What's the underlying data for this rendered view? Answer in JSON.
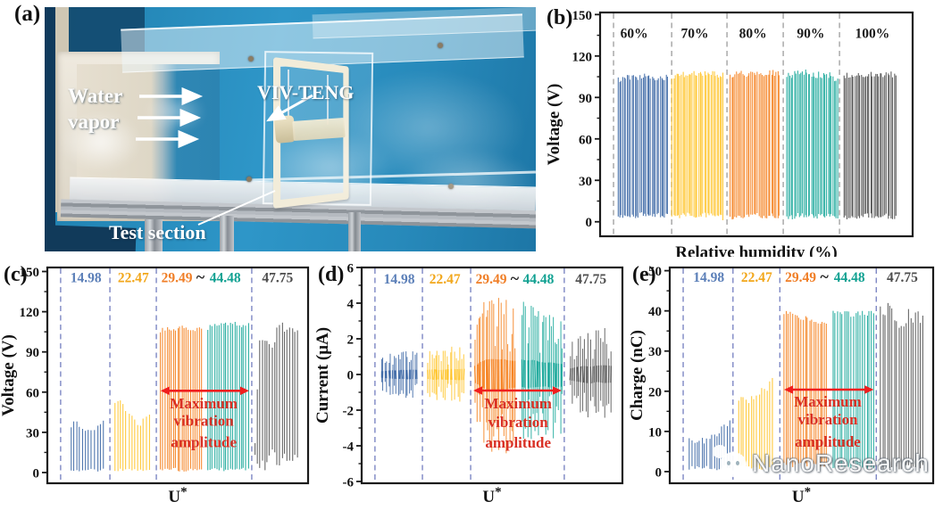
{
  "panel_a": {
    "label": "(a)"
  },
  "photo": {
    "labels": {
      "water_vapor": "Water vapor",
      "viv_teng": "VIV-TENG",
      "test_section": "Test section"
    }
  },
  "watermark": {
    "text": "NanoResearch"
  },
  "chart_data": [
    {
      "id": "b",
      "panel_label": "(b)",
      "type": "line",
      "subtype": "oscillation-bursts",
      "title": "",
      "xlabel": "Relative humidity (%)",
      "ylabel": "Voltage (V)",
      "ylim": [
        -10.5,
        151.5
      ],
      "yticks": [
        0,
        30,
        60,
        90,
        120,
        150
      ],
      "grid": false,
      "separators": {
        "color": "#A3A3A3",
        "positions": [
          0.043,
          0.229,
          0.406,
          0.586,
          0.766
        ]
      },
      "group_label_y": 133,
      "extra_labels": [],
      "groups": [
        {
          "label": "60%",
          "label_color": "#1a1a1a",
          "label_x": 0.109,
          "color": "#3E69A6",
          "x0": 0.057,
          "x1": 0.217,
          "style": "solid",
          "spacing": 1.7,
          "tjit": 2.2,
          "bjit": 4,
          "top": [
            103,
            105,
            104,
            106,
            104,
            105,
            104
          ],
          "bottom": [
            1,
            3,
            2,
            4,
            2,
            3,
            2
          ]
        },
        {
          "label": "70%",
          "label_color": "#1a1a1a",
          "label_x": 0.303,
          "color": "#FFC42A",
          "x0": 0.231,
          "x1": 0.394,
          "style": "solid",
          "spacing": 1.7,
          "tjit": 2.2,
          "bjit": 4,
          "top": [
            105,
            107,
            106,
            108,
            107,
            107,
            106
          ],
          "bottom": [
            1,
            2,
            3,
            2,
            3,
            2,
            1
          ]
        },
        {
          "label": "80%",
          "label_color": "#1a1a1a",
          "label_x": 0.489,
          "color": "#F58220",
          "x0": 0.417,
          "x1": 0.574,
          "style": "solid",
          "spacing": 1.7,
          "tjit": 2.2,
          "bjit": 4,
          "top": [
            106,
            108,
            107,
            108,
            107,
            108,
            107
          ],
          "bottom": [
            1,
            2,
            2,
            3,
            2,
            2,
            1
          ]
        },
        {
          "label": "90%",
          "label_color": "#1a1a1a",
          "label_x": 0.674,
          "color": "#1CA99B",
          "x0": 0.597,
          "x1": 0.76,
          "style": "solid",
          "spacing": 1.7,
          "tjit": 2.8,
          "bjit": 4,
          "top": [
            105,
            107,
            108,
            106,
            107,
            106,
            103
          ],
          "bottom": [
            1,
            2,
            3,
            2,
            2,
            3,
            2
          ]
        },
        {
          "label": "100%",
          "label_color": "#1a1a1a",
          "label_x": 0.871,
          "color": "#4F4F4F",
          "x0": 0.78,
          "x1": 0.946,
          "style": "solid",
          "spacing": 1.7,
          "tjit": 2.2,
          "bjit": 4,
          "top": [
            105,
            107,
            106,
            107,
            105,
            107,
            106
          ],
          "bottom": [
            1,
            2,
            2,
            3,
            2,
            2,
            1
          ]
        }
      ],
      "annotation": null
    },
    {
      "id": "c",
      "panel_label": "(c)",
      "type": "line",
      "subtype": "oscillation-bursts",
      "title": "",
      "xlabel": "U*",
      "ylabel": "Voltage (V)",
      "ylim": [
        -8,
        153
      ],
      "yticks": [
        0,
        30,
        60,
        90,
        120,
        150
      ],
      "grid": false,
      "separators": {
        "color": "#7D87C4",
        "positions": [
          0.051,
          0.24,
          0.418,
          0.784
        ]
      },
      "group_label_y": 142,
      "extra_labels": [
        {
          "text": "~",
          "x": 0.587,
          "color": "#1a1a1a"
        }
      ],
      "groups": [
        {
          "label": "14.98",
          "label_color": "#5B7FB8",
          "label_x": 0.148,
          "color": "#3E69A6",
          "x0": 0.09,
          "x1": 0.215,
          "style": "solid",
          "spacing": 3.1,
          "tjit": 1.6,
          "bjit": 2,
          "top": [
            34,
            40,
            36,
            31,
            30,
            31,
            33,
            37,
            38
          ],
          "bottom": [
            0.5,
            1,
            0.5,
            1,
            0.5,
            1
          ]
        },
        {
          "label": "22.47",
          "label_color": "#F2A71B",
          "label_x": 0.33,
          "color": "#FFC42A",
          "x0": 0.258,
          "x1": 0.39,
          "style": "solid",
          "spacing": 3.0,
          "tjit": 1.6,
          "bjit": 2,
          "top": [
            51,
            55,
            50,
            45,
            41,
            37,
            36,
            40,
            43
          ],
          "bottom": [
            0.5,
            1,
            1,
            0.5,
            1,
            0.5
          ]
        },
        {
          "label": "29.49",
          "label_color": "#F07E26",
          "label_x": 0.497,
          "color": "#F58220",
          "x0": 0.435,
          "x1": 0.59,
          "style": "solid",
          "spacing": 2.3,
          "tjit": 1.6,
          "bjit": 3,
          "top": [
            106,
            108,
            107,
            108,
            108,
            107,
            108
          ],
          "bottom": [
            0.5,
            1,
            0.5,
            1,
            0.5
          ]
        },
        {
          "label": "44.48",
          "label_color": "#11A192",
          "label_x": 0.682,
          "color": "#1CA99B",
          "x0": 0.616,
          "x1": 0.77,
          "style": "solid",
          "spacing": 2.4,
          "tjit": 1.6,
          "bjit": 3,
          "top": [
            108,
            110,
            111,
            110,
            111,
            110,
            110
          ],
          "bottom": [
            0.5,
            1,
            0.5,
            1,
            0.5
          ]
        },
        {
          "label": "47.75",
          "label_color": "#4D4D4D",
          "label_x": 0.883,
          "color": "#585858",
          "x0": 0.795,
          "x1": 0.958,
          "style": "solid",
          "spacing": 2.6,
          "tjit": 5,
          "bjit": 14,
          "top": [
            26,
            96,
            99,
            92,
            100,
            106,
            108,
            104,
            106,
            102
          ],
          "bottom": [
            0,
            2,
            0,
            8,
            2,
            0,
            6,
            0
          ]
        }
      ],
      "annotation": {
        "lines": [
          "Maximum",
          "vibration",
          "amplitude"
        ],
        "color": "#D93025",
        "arrow_color": "#F01E1E",
        "arrow": {
          "x0": 0.424,
          "x1": 0.784,
          "y": 61
        },
        "text_x": 0.6,
        "text_y": [
          48,
          35,
          19
        ]
      }
    },
    {
      "id": "d",
      "panel_label": "(d)",
      "type": "line",
      "subtype": "oscillation-bursts",
      "title": "",
      "xlabel": "U*",
      "ylabel": "Current (μA)",
      "ylim": [
        -6.1,
        6.0
      ],
      "yticks": [
        -6,
        -4,
        -2,
        0,
        2,
        4,
        6
      ],
      "grid": false,
      "separators": {
        "color": "#7D87C4",
        "positions": [
          0.051,
          0.233,
          0.418,
          0.777
        ]
      },
      "group_label_y": 5.1,
      "extra_labels": [
        {
          "text": "~",
          "x": 0.587,
          "color": "#1a1a1a"
        }
      ],
      "groups": [
        {
          "label": "14.98",
          "label_color": "#5B7FB8",
          "label_x": 0.144,
          "color": "#3E69A6",
          "x0": 0.075,
          "x1": 0.212,
          "style": "spiky",
          "spacing": 2.0,
          "top": [
            0.9,
            1.0,
            1.2,
            1.1,
            1.3,
            1.25,
            1.35,
            1.3
          ],
          "bottom": [
            -0.9,
            -1.05,
            -1.15,
            -1.25,
            -1.2,
            -1.35,
            -1.3,
            -1.25
          ]
        },
        {
          "label": "22.47",
          "label_color": "#F2A71B",
          "label_x": 0.319,
          "color": "#FFC42A",
          "x0": 0.255,
          "x1": 0.39,
          "style": "spiky",
          "spacing": 2.0,
          "top": [
            1.3,
            1.45,
            1.25,
            1.4,
            1.55,
            1.5,
            1.6
          ],
          "bottom": [
            -1.25,
            -1.5,
            -1.35,
            -1.5,
            -1.45,
            -1.6,
            -1.55
          ]
        },
        {
          "label": "29.49",
          "label_color": "#F07E26",
          "label_x": 0.497,
          "color": "#F58220",
          "x0": 0.435,
          "x1": 0.59,
          "style": "spiky",
          "spacing": 2.0,
          "top": [
            2.4,
            3.6,
            4.2,
            4.35,
            4.2,
            4.3,
            3.9,
            3.8
          ],
          "bottom": [
            -2.4,
            -3.5,
            -4.3,
            -4.6,
            -4.2,
            -5.0,
            -3.9,
            -3.7
          ]
        },
        {
          "label": "44.48",
          "label_color": "#11A192",
          "label_x": 0.678,
          "color": "#1CA99B",
          "x0": 0.615,
          "x1": 0.77,
          "style": "spiky",
          "spacing": 2.0,
          "top": [
            4.2,
            3.9,
            4.1,
            3.6,
            3.3,
            3.4,
            3.1,
            2.9
          ],
          "bottom": [
            -3.5,
            -3.8,
            -3.6,
            -3.5,
            -3.3,
            -3.7,
            -3.5,
            -3.4
          ]
        },
        {
          "label": "47.75",
          "label_color": "#4D4D4D",
          "label_x": 0.879,
          "color": "#585858",
          "x0": 0.8,
          "x1": 0.955,
          "style": "spiky",
          "spacing": 2.2,
          "top": [
            1.7,
            2.1,
            2.4,
            2.2,
            2.5,
            2.6,
            2.4
          ],
          "bottom": [
            -1.6,
            -2.0,
            -2.3,
            -2.5,
            -2.1,
            -2.4,
            -2.3
          ]
        }
      ],
      "annotation": {
        "lines": [
          "Maximum",
          "vibration",
          "amplitude"
        ],
        "color": "#D93025",
        "arrow_color": "#F01E1E",
        "arrow": {
          "x0": 0.418,
          "x1": 0.777,
          "y": -0.9
        },
        "text_x": 0.6,
        "text_y": [
          -1.9,
          -2.95,
          -4.1
        ]
      }
    },
    {
      "id": "e",
      "panel_label": "(e)",
      "type": "line",
      "subtype": "oscillation-bursts",
      "title": "",
      "xlabel": "U*",
      "ylabel": "Charge (nC)",
      "ylim": [
        -2.9,
        50.8
      ],
      "yticks": [
        0,
        10,
        20,
        30,
        40,
        50
      ],
      "grid": false,
      "separators": {
        "color": "#7D87C4",
        "positions": [
          0.051,
          0.24,
          0.418,
          0.784
        ]
      },
      "group_label_y": 47.3,
      "extra_labels": [
        {
          "text": "~",
          "x": 0.587,
          "color": "#1a1a1a"
        }
      ],
      "groups": [
        {
          "label": "14.98",
          "label_color": "#5B7FB8",
          "label_x": 0.148,
          "color": "#3E69A6",
          "x0": 0.075,
          "x1": 0.227,
          "style": "solid",
          "spacing": 2.6,
          "tjit": 0.9,
          "bjit": 1.2,
          "top": [
            8.5,
            8,
            7.5,
            7.8,
            8,
            8.5,
            9,
            10.5,
            11.5,
            12.3
          ],
          "bottom": [
            0.3,
            0.6,
            0.3,
            0.6
          ]
        },
        {
          "label": "22.47",
          "label_color": "#F2A71B",
          "label_x": 0.33,
          "color": "#FFC42A",
          "x0": 0.26,
          "x1": 0.39,
          "style": "solid",
          "spacing": 2.7,
          "tjit": 0.9,
          "bjit": 1.2,
          "top": [
            18.5,
            19.5,
            17.5,
            18,
            19,
            20,
            21,
            20.5,
            23.5
          ],
          "bottom": [
            0.3,
            0.6,
            0.4,
            0.6
          ]
        },
        {
          "label": "29.49",
          "label_color": "#F07E26",
          "label_x": 0.497,
          "color": "#F58220",
          "x0": 0.435,
          "x1": 0.595,
          "style": "solid",
          "spacing": 2.3,
          "tjit": 0.8,
          "bjit": 1.5,
          "top": [
            39,
            39.5,
            39,
            38.5,
            38.2,
            37.8,
            37,
            36.2
          ],
          "bottom": [
            0.8,
            1.2,
            0.8,
            1.4,
            0.8
          ]
        },
        {
          "label": "44.48",
          "label_color": "#11A192",
          "label_x": 0.682,
          "color": "#1CA99B",
          "x0": 0.62,
          "x1": 0.775,
          "style": "solid",
          "spacing": 2.4,
          "tjit": 0.7,
          "bjit": 1.2,
          "top": [
            39.5,
            39.3,
            39.5,
            39,
            39.4,
            39.2,
            39.5
          ],
          "bottom": [
            0.5,
            0.8,
            0.5,
            0.8
          ]
        },
        {
          "label": "47.75",
          "label_color": "#4D4D4D",
          "label_x": 0.883,
          "color": "#585858",
          "x0": 0.8,
          "x1": 0.96,
          "style": "solid",
          "spacing": 2.5,
          "tjit": 1.8,
          "bjit": 1.5,
          "top": [
            41,
            40.5,
            39.5,
            38.5,
            36.5,
            38.5,
            39,
            38.5,
            38
          ],
          "bottom": [
            0.2,
            0.5,
            0.2,
            0.5
          ]
        }
      ],
      "annotation": {
        "lines": [
          "Maximum",
          "vibration",
          "amplitude"
        ],
        "color": "#D93025",
        "arrow_color": "#F01E1E",
        "arrow": {
          "x0": 0.424,
          "x1": 0.784,
          "y": 20.4
        },
        "text_x": 0.6,
        "text_y": [
          16.2,
          11.7,
          6.2
        ]
      }
    }
  ]
}
